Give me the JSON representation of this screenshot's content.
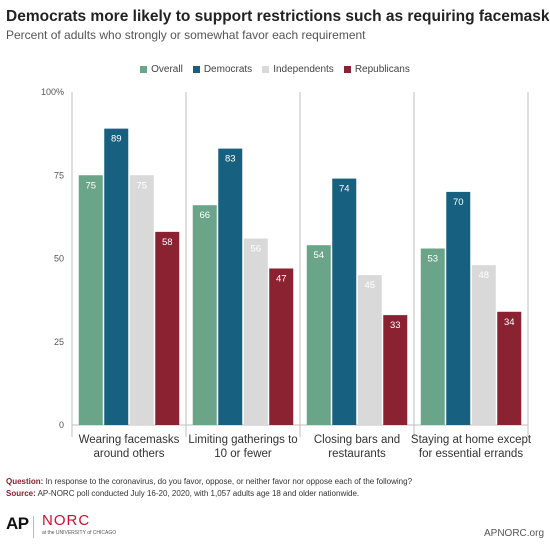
{
  "header": {
    "title": "Democrats more likely to support restrictions such as requiring facemasks",
    "subtitle": "Percent of adults who strongly or somewhat favor each requirement"
  },
  "chart_data": {
    "type": "bar",
    "categories": [
      [
        "Wearing facemasks",
        "around others"
      ],
      [
        "Limiting gatherings to",
        "10 or fewer"
      ],
      [
        "Closing bars and",
        "restaurants"
      ],
      [
        "Staying at home except",
        "for essential errands"
      ]
    ],
    "series": [
      {
        "name": "Overall",
        "color": "#6aa589",
        "label_color": "#ffffff",
        "values": [
          75,
          66,
          54,
          53
        ]
      },
      {
        "name": "Democrats",
        "color": "#17607f",
        "label_color": "#ffffff",
        "values": [
          89,
          83,
          74,
          70
        ]
      },
      {
        "name": "Independents",
        "color": "#d9d9d9",
        "label_color": "#ffffff",
        "values": [
          75,
          56,
          45,
          48
        ]
      },
      {
        "name": "Republicans",
        "color": "#8b2232",
        "label_color": "#ffffff",
        "values": [
          58,
          47,
          33,
          34
        ]
      }
    ],
    "ylim": [
      0,
      100
    ],
    "yticks": [
      {
        "value": 0,
        "label": "0"
      },
      {
        "value": 25,
        "label": "25"
      },
      {
        "value": 50,
        "label": "50"
      },
      {
        "value": 75,
        "label": "75"
      },
      {
        "value": 100,
        "label": "100%"
      }
    ],
    "legend_position": "top",
    "grid": false
  },
  "footer": {
    "question_label": "Question:",
    "question_text": "In response to the coronavirus, do you favor, oppose, or neither favor nor oppose each of the following?",
    "source_label": "Source:",
    "source_text": "AP-NORC poll conducted July 16-20, 2020,  with 1,057 adults age 18 and older nationwide.",
    "logo_ap": "AP",
    "logo_norc": "NORC",
    "logo_uc": "at the UNIVERSITY of CHICAGO",
    "site": "APNORC.org"
  }
}
